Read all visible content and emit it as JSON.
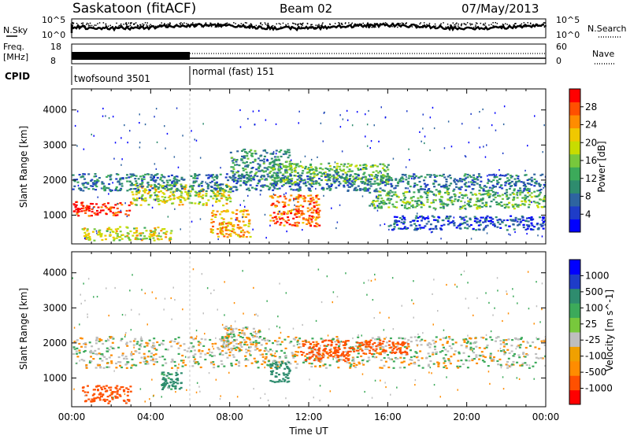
{
  "header": {
    "station": "Saskatoon (fitACF)",
    "beam": "Beam 02",
    "date": "07/May/2013"
  },
  "top_panels": {
    "nsky_label": "N.Sky",
    "nsky_ticks": [
      "10^5",
      "10^0"
    ],
    "nsearch_label": "N.Search",
    "nsearch_ticks": [
      "10^5",
      "10^0"
    ],
    "freq_label_1": "Freq.",
    "freq_label_2": "[MHz]",
    "freq_ticks": [
      "18",
      "8"
    ],
    "nave_label": "Nave",
    "nave_ticks": [
      "60",
      "0"
    ],
    "cpid_label": "CPID",
    "cpid_segments": [
      {
        "name": "twofsound 3501",
        "start_hour": 0,
        "end_hour": 6
      },
      {
        "name": "normal (fast) 151",
        "start_hour": 6,
        "end_hour": 24
      }
    ]
  },
  "chart_data": [
    {
      "type": "heatmap",
      "xlabel": "",
      "ylabel": "Slant Range [km]",
      "xlim": [
        0,
        24
      ],
      "ylim": [
        180,
        4600
      ],
      "yticks": [
        "1000",
        "2000",
        "3000",
        "4000"
      ],
      "colorbar": {
        "label": "Power [dB]",
        "ticks": [
          "28",
          "24",
          "20",
          "16",
          "12",
          "8",
          "4"
        ],
        "range": [
          0,
          30
        ],
        "colors": [
          "#0000ff",
          "#1e3cc8",
          "#2e64a0",
          "#2e8c6e",
          "#3caa5a",
          "#78c83c",
          "#c8dc00",
          "#f0c800",
          "#ff8c00",
          "#ff5000",
          "#ff0000"
        ]
      },
      "features": [
        {
          "hours": [
            0,
            3
          ],
          "range_km": [
            1000,
            1400
          ],
          "level": 27
        },
        {
          "hours": [
            0.5,
            5
          ],
          "range_km": [
            300,
            700
          ],
          "level": 18
        },
        {
          "hours": [
            3,
            8
          ],
          "range_km": [
            1300,
            1900
          ],
          "level": 18
        },
        {
          "hours": [
            7,
            9
          ],
          "range_km": [
            400,
            1200
          ],
          "level": 22
        },
        {
          "hours": [
            8,
            11
          ],
          "range_km": [
            2000,
            2900
          ],
          "level": 10
        },
        {
          "hours": [
            10,
            12.5
          ],
          "range_km": [
            700,
            1600
          ],
          "level": 25
        },
        {
          "hours": [
            10,
            16
          ],
          "range_km": [
            1900,
            2500
          ],
          "level": 14
        },
        {
          "hours": [
            15,
            24
          ],
          "range_km": [
            1200,
            1700
          ],
          "level": 13
        },
        {
          "hours": [
            16,
            24
          ],
          "range_km": [
            600,
            1000
          ],
          "level": 5
        },
        {
          "hours": [
            0,
            24
          ],
          "range_km": [
            1700,
            2200
          ],
          "level": 8
        }
      ]
    },
    {
      "type": "heatmap",
      "xlabel": "Time UT",
      "ylabel": "Slant Range [km]",
      "xlim": [
        0,
        24
      ],
      "ylim": [
        180,
        4600
      ],
      "yticks": [
        "1000",
        "2000",
        "3000",
        "4000"
      ],
      "xticks": [
        "00:00",
        "04:00",
        "08:00",
        "12:00",
        "16:00",
        "20:00",
        "00:00"
      ],
      "colorbar": {
        "label": "Velocity [m s^-1]",
        "ticks": [
          "1000",
          "500",
          "100",
          "25",
          "-25",
          "-100",
          "-500",
          "-1000"
        ],
        "range": [
          -1000,
          1000
        ],
        "colors": [
          "#ff0000",
          "#ff5000",
          "#ff8c00",
          "#f0a000",
          "#bebebe",
          "#78c83c",
          "#3caa5a",
          "#2e8c6e",
          "#1e3cc8",
          "#0000ff"
        ]
      },
      "features": [
        {
          "hours": [
            0,
            24
          ],
          "range_km": [
            1300,
            2200
          ],
          "velocity": 0
        },
        {
          "hours": [
            0.5,
            3
          ],
          "range_km": [
            300,
            800
          ],
          "velocity": -200
        },
        {
          "hours": [
            4.5,
            5.5
          ],
          "range_km": [
            700,
            1200
          ],
          "velocity": 150
        },
        {
          "hours": [
            10,
            11
          ],
          "range_km": [
            900,
            1500
          ],
          "velocity": 200
        },
        {
          "hours": [
            11.5,
            14
          ],
          "range_km": [
            1500,
            2100
          ],
          "velocity": -250
        },
        {
          "hours": [
            7.5,
            9.5
          ],
          "range_km": [
            1800,
            2500
          ],
          "velocity": 0
        },
        {
          "hours": [
            14,
            17
          ],
          "range_km": [
            1700,
            2100
          ],
          "velocity": -150
        }
      ]
    }
  ]
}
